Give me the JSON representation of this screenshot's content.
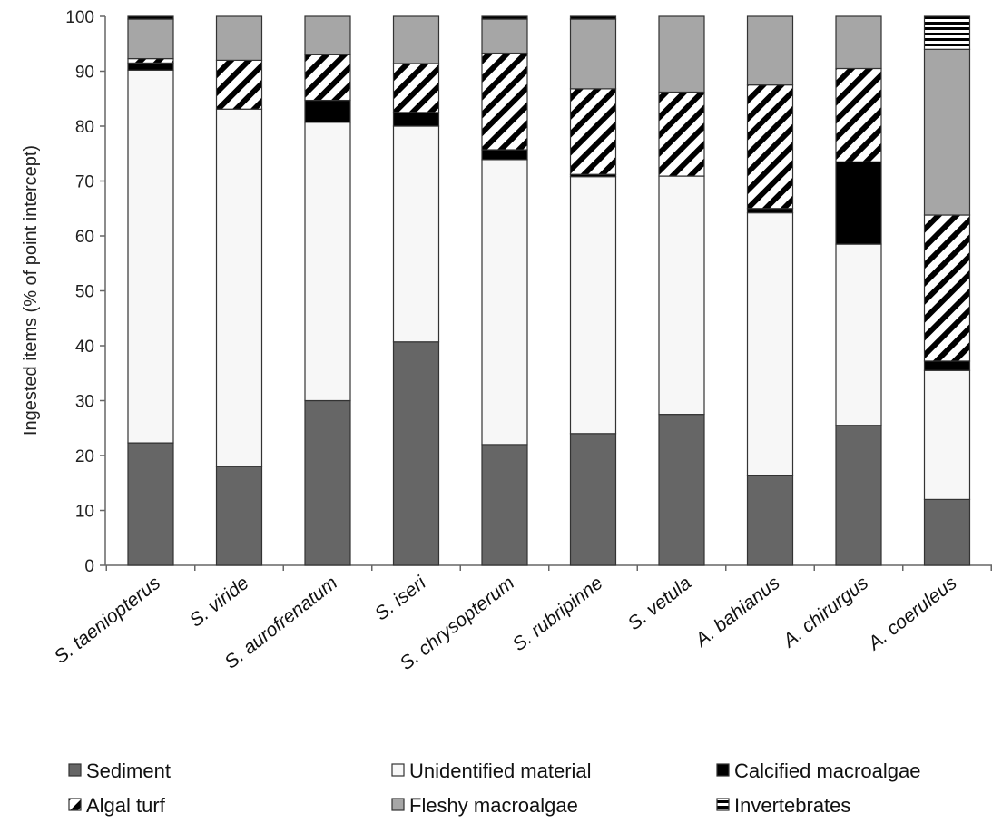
{
  "chart_data": {
    "type": "bar",
    "stacked": true,
    "title": "",
    "xlabel": "",
    "ylabel": "Ingested items (% of point intercept)",
    "ylim": [
      0,
      100
    ],
    "yticks": [
      0,
      10,
      20,
      30,
      40,
      50,
      60,
      70,
      80,
      90,
      100
    ],
    "grid": false,
    "legend_position": "bottom",
    "categories": [
      "S. taeniopterus",
      "S. viride",
      "S. aurofrenatum",
      "S. iseri",
      "S. chrysopterum",
      "S. rubripinne",
      "S. vetula",
      "A. bahianus",
      "A. chirurgus",
      "A. coeruleus"
    ],
    "series": [
      {
        "name": "Sediment",
        "pattern": "solid",
        "color": "#666666",
        "values": [
          22.3,
          18,
          30,
          40.7,
          22,
          24,
          27.5,
          16.3,
          25.5,
          12
        ]
      },
      {
        "name": "Unidentified material",
        "pattern": "solid",
        "color": "#f7f7f7",
        "values": [
          67.9,
          65.1,
          50.7,
          39.3,
          51.9,
          46.8,
          43.4,
          47.9,
          33,
          23.5
        ]
      },
      {
        "name": "Calcified macroalgae",
        "pattern": "solid",
        "color": "#000000",
        "values": [
          1.3,
          0,
          4,
          2.5,
          1.8,
          0.4,
          0,
          0.8,
          15,
          1.7
        ]
      },
      {
        "name": "Algal turf",
        "pattern": "diagonal-stripes",
        "color": "#000000",
        "values": [
          0.8,
          8.9,
          8.3,
          8.9,
          17.6,
          15.6,
          15.3,
          22.5,
          17,
          26.6
        ]
      },
      {
        "name": "Fleshy macroalgae",
        "pattern": "solid",
        "color": "#a6a6a6",
        "values": [
          7.2,
          8,
          7,
          8.6,
          6.2,
          12.7,
          13.8,
          12.5,
          9.5,
          30.2
        ]
      },
      {
        "name": "Invertebrates",
        "pattern": "horizontal-stripes",
        "color": "#000000",
        "values": [
          0.5,
          0,
          0,
          0,
          0.5,
          0.5,
          0,
          0,
          0,
          6
        ]
      }
    ],
    "legend": [
      {
        "label": "Sediment",
        "row": 0,
        "col": 0
      },
      {
        "label": "Unidentified material",
        "row": 0,
        "col": 1
      },
      {
        "label": "Calcified macroalgae",
        "row": 0,
        "col": 2
      },
      {
        "label": "Algal turf",
        "row": 1,
        "col": 0
      },
      {
        "label": "Fleshy macroalgae",
        "row": 1,
        "col": 1
      },
      {
        "label": "Invertebrates",
        "row": 1,
        "col": 2
      }
    ]
  }
}
